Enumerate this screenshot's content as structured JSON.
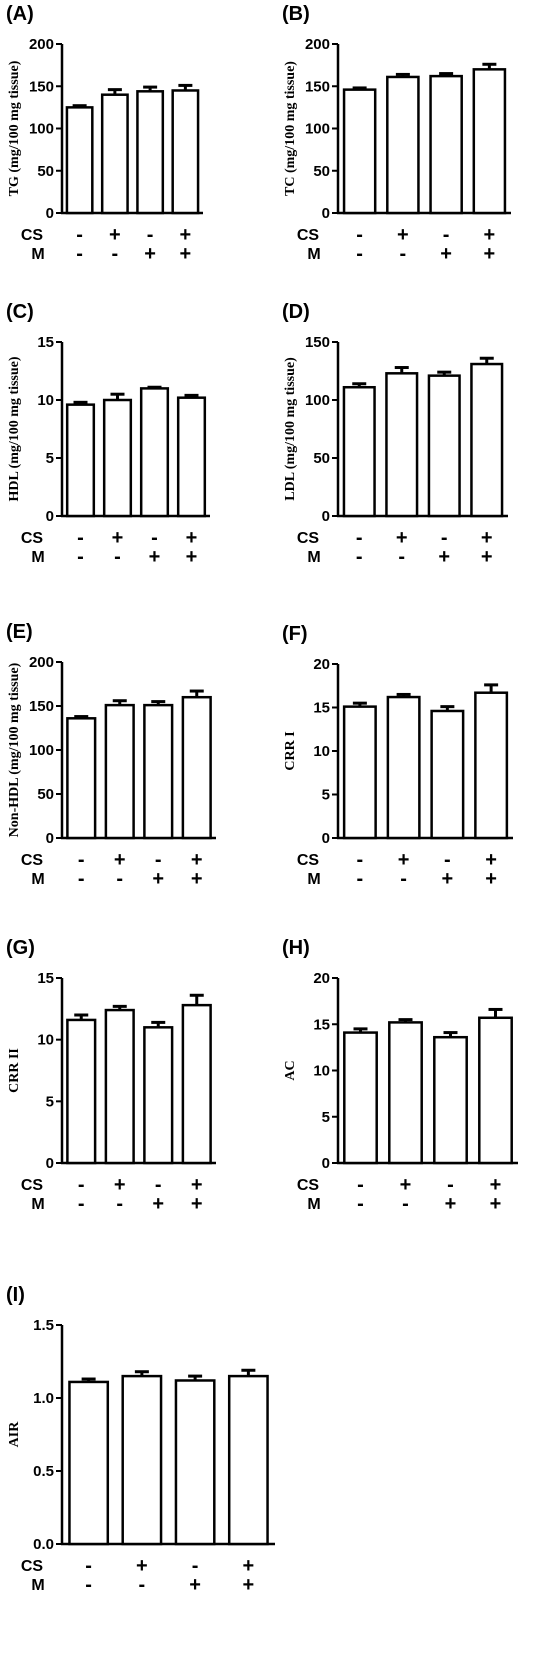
{
  "chart_data": [
    {
      "type": "bar",
      "panel_label": "(A)",
      "ylabel": "TG (mg/100 mg tissue)",
      "ylim": [
        0,
        200
      ],
      "yticks": [
        "0",
        "50",
        "100",
        "150",
        "200"
      ],
      "values": [
        125,
        140,
        144,
        145
      ],
      "errors": [
        2,
        6,
        5,
        6
      ],
      "groups": {
        "CS": [
          "-",
          "+",
          "-",
          "+"
        ],
        "M": [
          "-",
          "-",
          "+",
          "+"
        ]
      }
    },
    {
      "type": "bar",
      "panel_label": "(B)",
      "ylabel": "TC (mg/100 mg tissue)",
      "ylim": [
        0,
        200
      ],
      "yticks": [
        "0",
        "50",
        "100",
        "150",
        "200"
      ],
      "values": [
        146,
        161,
        162,
        170
      ],
      "errors": [
        2,
        3,
        3,
        6
      ],
      "groups": {
        "CS": [
          "-",
          "+",
          "-",
          "+"
        ],
        "M": [
          "-",
          "-",
          "+",
          "+"
        ]
      }
    },
    {
      "type": "bar",
      "panel_label": "(C)",
      "ylabel": "HDL (mg/100 mg tissue)",
      "ylim": [
        0,
        15
      ],
      "yticks": [
        "0",
        "5",
        "10",
        "15"
      ],
      "values": [
        9.6,
        10.0,
        11.0,
        10.2
      ],
      "errors": [
        0.2,
        0.5,
        0.1,
        0.2
      ],
      "groups": {
        "CS": [
          "-",
          "+",
          "-",
          "+"
        ],
        "M": [
          "-",
          "-",
          "+",
          "+"
        ]
      }
    },
    {
      "type": "bar",
      "panel_label": "(D)",
      "ylabel": "LDL (mg/100 mg tissue)",
      "ylim": [
        0,
        150
      ],
      "yticks": [
        "0",
        "50",
        "100",
        "150"
      ],
      "values": [
        111,
        123,
        121,
        131
      ],
      "errors": [
        3,
        5,
        3,
        5
      ],
      "groups": {
        "CS": [
          "-",
          "+",
          "-",
          "+"
        ],
        "M": [
          "-",
          "-",
          "+",
          "+"
        ]
      }
    },
    {
      "type": "bar",
      "panel_label": "(E)",
      "ylabel": "Non-HDL (mg/100 mg tissue)",
      "ylim": [
        0,
        200
      ],
      "yticks": [
        "0",
        "50",
        "100",
        "150",
        "200"
      ],
      "values": [
        136,
        151,
        151,
        160
      ],
      "errors": [
        2,
        5,
        4,
        7
      ],
      "groups": {
        "CS": [
          "-",
          "+",
          "-",
          "+"
        ],
        "M": [
          "-",
          "-",
          "+",
          "+"
        ]
      }
    },
    {
      "type": "bar",
      "panel_label": "(F)",
      "ylabel": "CRR I",
      "ylim": [
        0,
        20
      ],
      "yticks": [
        "0",
        "5",
        "10",
        "15",
        "20"
      ],
      "values": [
        15.1,
        16.2,
        14.6,
        16.7
      ],
      "errors": [
        0.4,
        0.3,
        0.5,
        0.9
      ],
      "groups": {
        "CS": [
          "-",
          "+",
          "-",
          "+"
        ],
        "M": [
          "-",
          "-",
          "+",
          "+"
        ]
      }
    },
    {
      "type": "bar",
      "panel_label": "(G)",
      "ylabel": "CRR II",
      "ylim": [
        0,
        15
      ],
      "yticks": [
        "0",
        "5",
        "10",
        "15"
      ],
      "values": [
        11.6,
        12.4,
        11.0,
        12.8
      ],
      "errors": [
        0.4,
        0.3,
        0.4,
        0.8
      ],
      "groups": {
        "CS": [
          "-",
          "+",
          "-",
          "+"
        ],
        "M": [
          "-",
          "-",
          "+",
          "+"
        ]
      }
    },
    {
      "type": "bar",
      "panel_label": "(H)",
      "ylabel": "AC",
      "ylim": [
        0,
        20
      ],
      "yticks": [
        "0",
        "5",
        "10",
        "15",
        "20"
      ],
      "values": [
        14.1,
        15.2,
        13.6,
        15.7
      ],
      "errors": [
        0.4,
        0.3,
        0.5,
        0.9
      ],
      "groups": {
        "CS": [
          "-",
          "+",
          "-",
          "+"
        ],
        "M": [
          "-",
          "-",
          "+",
          "+"
        ]
      }
    },
    {
      "type": "bar",
      "panel_label": "(I)",
      "ylabel": "AIR",
      "ylim": [
        0,
        1.5
      ],
      "yticks": [
        "0.0",
        "0.5",
        "1.0",
        "1.5"
      ],
      "values": [
        1.11,
        1.15,
        1.12,
        1.15
      ],
      "errors": [
        0.02,
        0.03,
        0.03,
        0.04
      ],
      "groups": {
        "CS": [
          "-",
          "+",
          "-",
          "+"
        ],
        "M": [
          "-",
          "-",
          "+",
          "+"
        ]
      }
    }
  ]
}
